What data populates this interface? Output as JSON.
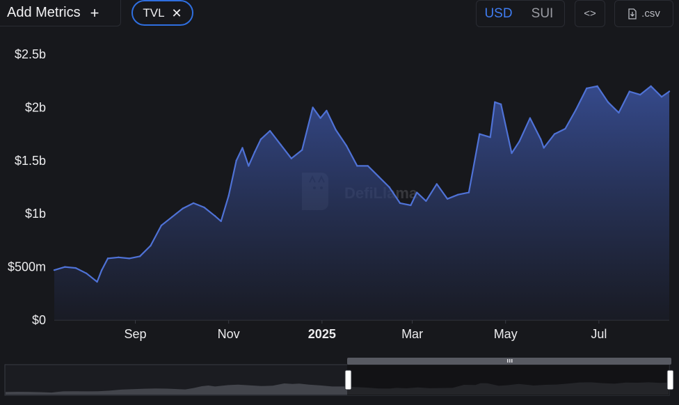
{
  "toolbar": {
    "add_metrics_label": "Add Metrics",
    "add_icon": "plus-icon",
    "metric_chip_label": "TVL",
    "remove_icon": "close-icon",
    "currency_options": [
      "USD",
      "SUI"
    ],
    "selected_currency": "USD",
    "embed_icon": "code-icon",
    "csv_label": ".csv",
    "csv_icon": "download-file-icon"
  },
  "watermark": {
    "text": "DefiLlama",
    "logo": "llama-logo"
  },
  "range_selector": {
    "handle_icon": "grip-icon"
  },
  "colors": {
    "background": "#17181c",
    "line": "#4f72d6",
    "accent": "#3f7cf0"
  },
  "chart_data": {
    "type": "area",
    "series": [
      {
        "x": [
          "2024-07-10",
          "2024-07-17",
          "2024-07-24",
          "2024-07-31",
          "2024-08-07",
          "2024-08-10",
          "2024-08-14",
          "2024-08-21",
          "2024-08-28",
          "2024-09-04",
          "2024-09-11",
          "2024-09-18",
          "2024-09-25",
          "2024-10-02",
          "2024-10-09",
          "2024-10-16",
          "2024-10-23",
          "2024-10-27",
          "2024-11-01",
          "2024-11-06",
          "2024-11-10",
          "2024-11-14",
          "2024-11-18",
          "2024-11-22",
          "2024-11-28",
          "2024-12-05",
          "2024-12-12",
          "2024-12-19",
          "2024-12-26",
          "2024-12-31",
          "2025-01-04",
          "2025-01-10",
          "2025-01-17",
          "2025-01-24",
          "2025-01-31",
          "2025-02-07",
          "2025-02-14",
          "2025-02-21",
          "2025-02-28",
          "2025-03-04",
          "2025-03-10",
          "2025-03-17",
          "2025-03-24",
          "2025-03-31",
          "2025-04-07",
          "2025-04-14",
          "2025-04-21",
          "2025-04-24",
          "2025-04-28",
          "2025-05-05",
          "2025-05-10",
          "2025-05-17",
          "2025-05-24",
          "2025-05-26",
          "2025-06-02",
          "2025-06-09",
          "2025-06-16",
          "2025-06-23",
          "2025-06-30",
          "2025-07-07",
          "2025-07-14",
          "2025-07-21",
          "2025-07-28",
          "2025-08-04",
          "2025-08-11",
          "2025-08-16"
        ],
        "y": [
          0.47,
          0.5,
          0.49,
          0.44,
          0.36,
          0.47,
          0.58,
          0.59,
          0.58,
          0.6,
          0.7,
          0.89,
          0.97,
          1.05,
          1.1,
          1.06,
          0.98,
          0.93,
          1.17,
          1.5,
          1.62,
          1.45,
          1.58,
          1.7,
          1.78,
          1.65,
          1.52,
          1.6,
          2.0,
          1.9,
          1.97,
          1.79,
          1.64,
          1.45,
          1.45,
          1.35,
          1.25,
          1.1,
          1.08,
          1.2,
          1.12,
          1.28,
          1.14,
          1.18,
          1.2,
          1.75,
          1.72,
          2.05,
          2.03,
          1.57,
          1.68,
          1.9,
          1.7,
          1.62,
          1.75,
          1.8,
          1.98,
          2.18,
          2.2,
          2.05,
          1.95,
          2.15,
          2.12,
          2.2,
          2.1,
          2.15
        ]
      }
    ],
    "ylim": [
      0,
      2.5
    ],
    "yticks": [
      {
        "value": 0,
        "label": "$0"
      },
      {
        "value": 0.5,
        "label": "$500m"
      },
      {
        "value": 1.0,
        "label": "$1b"
      },
      {
        "value": 1.5,
        "label": "$1.5b"
      },
      {
        "value": 2.0,
        "label": "$2b"
      },
      {
        "value": 2.5,
        "label": "$2.5b"
      }
    ],
    "xticks": [
      {
        "date": "2024-09-01",
        "label": "Sep",
        "bold": false
      },
      {
        "date": "2024-11-01",
        "label": "Nov",
        "bold": false
      },
      {
        "date": "2025-01-01",
        "label": "2025",
        "bold": true
      },
      {
        "date": "2025-03-01",
        "label": "Mar",
        "bold": false
      },
      {
        "date": "2025-05-01",
        "label": "May",
        "bold": false
      },
      {
        "date": "2025-07-01",
        "label": "Jul",
        "bold": false
      }
    ],
    "grid": false,
    "legend": "none"
  }
}
